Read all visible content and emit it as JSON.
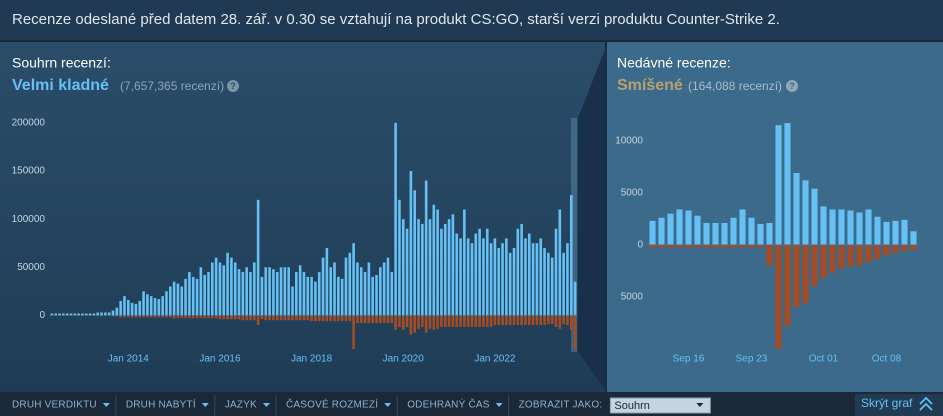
{
  "header": {
    "notice": "Recenze odeslané před datem 28. zář. v 0.30 se vztahují na produkt CS:GO, starší verzi produktu Counter-Strike 2."
  },
  "summary": {
    "label": "Souhrn recenzí:",
    "rating": "Velmi kladné",
    "count": "(7,657,365 recenzí)",
    "help": "?"
  },
  "recent": {
    "label": "Nedávné recenze:",
    "rating": "Smíšené",
    "count": "(164,088 recenzí)",
    "help": "?"
  },
  "chart_data": [
    {
      "type": "bar",
      "categories": [
        null,
        null,
        null,
        null,
        null,
        null,
        null,
        null,
        null,
        null,
        null,
        null,
        null,
        null,
        null,
        null,
        null,
        null,
        null,
        null,
        "Jan 2014",
        null,
        null,
        null,
        null,
        null,
        null,
        null,
        null,
        null,
        null,
        null,
        null,
        null,
        null,
        null,
        null,
        null,
        null,
        null,
        null,
        null,
        null,
        null,
        "Jan 2016",
        null,
        null,
        null,
        null,
        null,
        null,
        null,
        null,
        null,
        null,
        null,
        null,
        null,
        null,
        null,
        null,
        null,
        null,
        null,
        null,
        null,
        null,
        null,
        "Jan 2018",
        null,
        null,
        null,
        null,
        null,
        null,
        null,
        null,
        null,
        null,
        null,
        null,
        null,
        null,
        null,
        null,
        null,
        null,
        null,
        null,
        null,
        null,
        null,
        "Jan 2020",
        null,
        null,
        null,
        null,
        null,
        null,
        null,
        null,
        null,
        null,
        null,
        null,
        null,
        null,
        null,
        null,
        null,
        null,
        null,
        null,
        null,
        null,
        null,
        "Jan 2022",
        null,
        null,
        null,
        null,
        null,
        null,
        null,
        null,
        null,
        null,
        null,
        null,
        null,
        null,
        null,
        null,
        null,
        null,
        null,
        null,
        null
      ],
      "series": [
        {
          "color": "#66c0f4",
          "values": [
            2000,
            2000,
            2000,
            2000,
            2000,
            2000,
            2000,
            2000,
            2000,
            2000,
            2000,
            2000,
            3000,
            3000,
            3000,
            3000,
            5000,
            8000,
            15000,
            20000,
            16000,
            13000,
            12000,
            15000,
            25000,
            22000,
            20000,
            18000,
            17000,
            20000,
            25000,
            30000,
            35000,
            33000,
            30000,
            38000,
            45000,
            40000,
            38000,
            50000,
            42000,
            45000,
            55000,
            60000,
            55000,
            52000,
            65000,
            60000,
            55000,
            48000,
            45000,
            50000,
            45000,
            55000,
            120000,
            40000,
            50000,
            50000,
            48000,
            45000,
            50000,
            50000,
            50000,
            30000,
            45000,
            52000,
            45000,
            40000,
            40000,
            35000,
            45000,
            60000,
            70000,
            50000,
            55000,
            40000,
            38000,
            60000,
            65000,
            75000,
            55000,
            50000,
            45000,
            55000,
            40000,
            42000,
            50000,
            55000,
            60000,
            45000,
            200000,
            120000,
            100000,
            90000,
            150000,
            130000,
            100000,
            95000,
            140000,
            100000,
            115000,
            110000,
            90000,
            95000,
            100000,
            105000,
            85000,
            80000,
            110000,
            80000,
            75000,
            85000,
            90000,
            80000,
            90000,
            75000,
            80000,
            70000,
            75000,
            80000,
            65000,
            70000,
            90000,
            95000,
            80000,
            85000,
            75000,
            75000,
            80000,
            70000,
            65000,
            60000,
            90000,
            110000,
            65000,
            75000,
            125000,
            35000
          ]
        },
        {
          "color": "#a34c25",
          "values": [
            -500,
            -500,
            -500,
            -500,
            -500,
            -500,
            -500,
            -500,
            -500,
            -500,
            -500,
            -500,
            -500,
            -500,
            -500,
            -500,
            -1000,
            -1000,
            -2000,
            -2000,
            -2000,
            -2000,
            -2000,
            -2000,
            -2000,
            -2000,
            -2000,
            -2000,
            -2000,
            -2000,
            -2000,
            -2000,
            -3000,
            -3000,
            -3000,
            -3000,
            -3000,
            -3000,
            -3000,
            -3000,
            -3000,
            -3000,
            -3000,
            -3000,
            -4000,
            -4000,
            -4000,
            -4000,
            -4000,
            -4000,
            -5000,
            -5000,
            -5000,
            -5000,
            -10000,
            -4000,
            -5000,
            -5000,
            -5000,
            -5000,
            -5000,
            -5000,
            -5000,
            -5000,
            -5000,
            -5000,
            -5000,
            -5000,
            -6000,
            -6000,
            -6000,
            -6000,
            -6000,
            -6000,
            -6000,
            -6000,
            -6000,
            -6000,
            -6000,
            -35000,
            -8000,
            -8000,
            -8000,
            -8000,
            -8000,
            -8000,
            -8000,
            -8000,
            -8000,
            -8000,
            -15000,
            -12000,
            -15000,
            -12000,
            -20000,
            -18000,
            -14000,
            -12000,
            -18000,
            -14000,
            -15000,
            -14000,
            -12000,
            -12000,
            -12000,
            -12000,
            -12000,
            -12000,
            -12000,
            -12000,
            -12000,
            -12000,
            -12000,
            -12000,
            -12000,
            -12000,
            -10000,
            -10000,
            -10000,
            -10000,
            -10000,
            -10000,
            -10000,
            -10000,
            -10000,
            -10000,
            -10000,
            -10000,
            -10000,
            -10000,
            -9000,
            -9000,
            -12000,
            -14000,
            -9000,
            -10000,
            -15000,
            -35000
          ]
        }
      ],
      "ylim": [
        -38000,
        205000
      ],
      "yticks": [
        0,
        50000,
        100000,
        150000,
        200000
      ]
    },
    {
      "type": "bar",
      "categories": [
        null,
        null,
        null,
        null,
        "Sep 16",
        null,
        null,
        null,
        null,
        null,
        null,
        "Sep 23",
        null,
        null,
        null,
        null,
        null,
        null,
        null,
        "Oct 01",
        null,
        null,
        null,
        null,
        null,
        null,
        "Oct 08",
        null,
        null,
        null
      ],
      "series": [
        {
          "color": "#66c0f4",
          "values": [
            2300,
            2600,
            3000,
            3400,
            3300,
            2800,
            2100,
            2100,
            2100,
            2600,
            3400,
            2600,
            2000,
            2100,
            11500,
            11700,
            6900,
            6200,
            5400,
            3700,
            3400,
            3400,
            3300,
            3100,
            3400,
            2700,
            2200,
            2300,
            2400,
            1300
          ]
        },
        {
          "color": "#a34c25",
          "values": [
            -300,
            -300,
            -300,
            -300,
            -300,
            -300,
            -300,
            -300,
            -300,
            -300,
            -300,
            -300,
            -300,
            -2000,
            -10000,
            -7800,
            -6000,
            -5600,
            -4000,
            -3200,
            -2700,
            -2300,
            -2100,
            -2000,
            -1700,
            -1400,
            -1000,
            -800,
            -600,
            -500
          ]
        }
      ],
      "ylim": [
        -13000,
        12000
      ],
      "yticks": [
        {
          "value": -5000,
          "label": "5000"
        },
        0,
        5000,
        10000
      ]
    }
  ],
  "filters": [
    "DRUH VERDIKTU",
    "DRUH NABYTÍ",
    "JAZYK",
    "ČASOVÉ ROZMEZÍ",
    "ODEHRANÝ ČAS"
  ],
  "display": {
    "label": "ZOBRAZIT JAKO:",
    "selected": "Souhrn"
  },
  "hide_graph": "Skrýt graf"
}
